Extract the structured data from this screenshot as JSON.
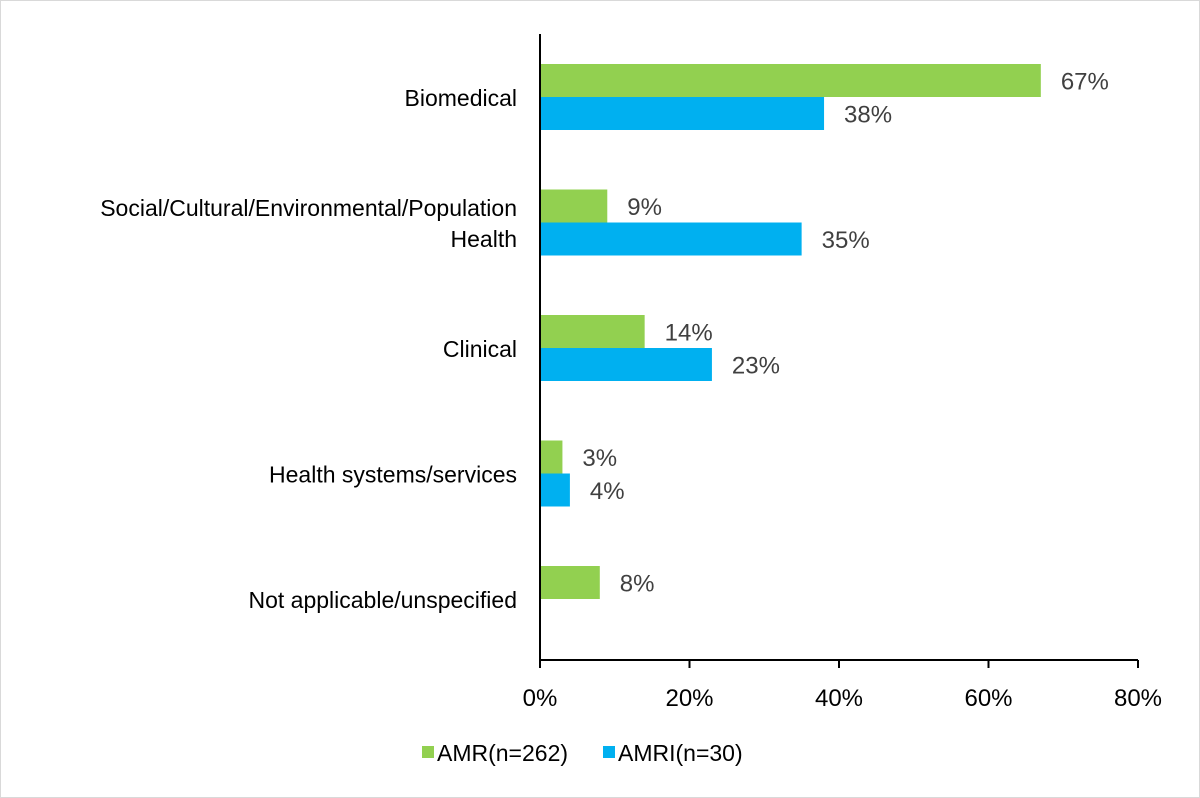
{
  "chart_data": {
    "type": "bar",
    "orientation": "horizontal",
    "title": "",
    "xlabel": "",
    "ylabel": "",
    "categories": [
      "Biomedical",
      "Social/Cultural/Environmental/Population Health",
      "Clinical",
      "Health systems/services",
      "Not applicable/unspecified"
    ],
    "category_lines": [
      [
        "Biomedical"
      ],
      [
        "Social/Cultural/Environmental/Population",
        "Health"
      ],
      [
        "Clinical"
      ],
      [
        "Health systems/services"
      ],
      [
        "Not applicable/unspecified"
      ]
    ],
    "series": [
      {
        "name": "AMR(n=262)",
        "color": "#92d050",
        "values": [
          67,
          9,
          14,
          3,
          8
        ],
        "labels": [
          "67%",
          "9%",
          "14%",
          "3%",
          "8%"
        ]
      },
      {
        "name": "AMRI(n=30)",
        "color": "#00b0f0",
        "values": [
          38,
          35,
          23,
          4,
          null
        ],
        "labels": [
          "38%",
          "35%",
          "23%",
          "4%",
          null
        ]
      }
    ],
    "xlim": [
      0,
      80
    ],
    "xticks": [
      0,
      20,
      40,
      60,
      80
    ],
    "xtick_labels": [
      "0%",
      "20%",
      "40%",
      "60%",
      "80%"
    ],
    "grid": false,
    "legend_position": "bottom"
  }
}
